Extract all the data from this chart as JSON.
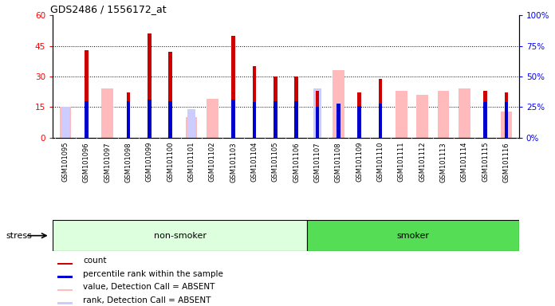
{
  "title": "GDS2486 / 1556172_at",
  "samples": [
    "GSM101095",
    "GSM101096",
    "GSM101097",
    "GSM101098",
    "GSM101099",
    "GSM101100",
    "GSM101101",
    "GSM101102",
    "GSM101103",
    "GSM101104",
    "GSM101105",
    "GSM101106",
    "GSM101107",
    "GSM101108",
    "GSM101109",
    "GSM101110",
    "GSM101111",
    "GSM101112",
    "GSM101113",
    "GSM101114",
    "GSM101115",
    "GSM101116"
  ],
  "count_values": [
    0,
    43,
    0,
    22,
    51,
    42,
    0,
    0,
    50,
    35,
    30,
    30,
    23,
    0,
    22,
    29,
    0,
    0,
    0,
    0,
    23,
    22
  ],
  "percentile_values": [
    0,
    30,
    0,
    30,
    31,
    30,
    0,
    0,
    31,
    29,
    30,
    30,
    25,
    28,
    26,
    28,
    0,
    0,
    0,
    0,
    29,
    29
  ],
  "absent_value_values": [
    15,
    0,
    24,
    0,
    0,
    0,
    10,
    19,
    0,
    0,
    0,
    0,
    0,
    33,
    0,
    0,
    23,
    21,
    23,
    24,
    0,
    13
  ],
  "absent_rank_values": [
    15,
    0,
    0,
    0,
    0,
    0,
    14,
    0,
    0,
    0,
    0,
    0,
    24,
    0,
    0,
    0,
    0,
    0,
    0,
    0,
    0,
    0
  ],
  "non_smoker_count": 12,
  "smoker_count": 10,
  "ylim_left": [
    0,
    60
  ],
  "ylim_right": [
    0,
    100
  ],
  "yticks_left": [
    0,
    15,
    30,
    45,
    60
  ],
  "yticks_right": [
    0,
    25,
    50,
    75,
    100
  ],
  "color_count": "#cc0000",
  "color_percentile": "#0000cc",
  "color_absent_value": "#ffbbbb",
  "color_absent_rank": "#ccccff",
  "color_nonsmoker_bg": "#ddffdd",
  "color_smoker_bg": "#55dd55",
  "color_label_bg": "#cccccc",
  "stress_label": "stress",
  "legend_items": [
    {
      "label": "count",
      "color": "#cc0000"
    },
    {
      "label": "percentile rank within the sample",
      "color": "#0000cc"
    },
    {
      "label": "value, Detection Call = ABSENT",
      "color": "#ffbbbb"
    },
    {
      "label": "rank, Detection Call = ABSENT",
      "color": "#ccccff"
    }
  ]
}
